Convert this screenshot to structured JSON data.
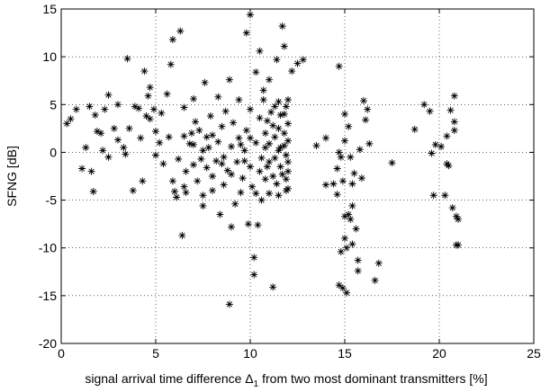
{
  "chart_data": {
    "type": "scatter",
    "y_label": "SFNG [dB]",
    "x_label_parts": [
      "signal arrival time difference Δ",
      "1",
      " from two most dominant transmitters [%]"
    ],
    "xlim": [
      0,
      25
    ],
    "xticks": [
      0,
      5,
      10,
      15,
      20,
      25
    ],
    "ylim": [
      -20,
      15
    ],
    "yticks": [
      -20,
      -15,
      -10,
      -5,
      0,
      5,
      10,
      15
    ],
    "grid": true,
    "marker": "asterisk",
    "color": "#000000",
    "x": [
      0.3,
      0.5,
      0.8,
      1.1,
      1.3,
      1.5,
      1.6,
      1.7,
      1.8,
      1.9,
      2.1,
      2.2,
      2.3,
      2.5,
      2.5,
      2.8,
      3,
      3,
      3.3,
      3.5,
      3.4,
      3.6,
      3.8,
      3.9,
      4.1,
      4.2,
      4.3,
      4.4,
      4.5,
      4.6,
      4.7,
      4.7,
      4.9,
      5,
      5,
      5.2,
      5.3,
      5.4,
      5.6,
      5.7,
      5.8,
      5.9,
      5.9,
      6,
      6.1,
      6.2,
      6.3,
      6.4,
      6.5,
      6.5,
      6.5,
      6.6,
      6.8,
      6.9,
      7,
      7,
      7.1,
      7.2,
      7.3,
      7.4,
      7.5,
      7.5,
      7.6,
      7.7,
      7.7,
      7.8,
      7.9,
      8,
      8,
      8.2,
      8.3,
      8.3,
      8.4,
      8.5,
      8.6,
      8.6,
      8.7,
      8.8,
      8.9,
      8.9,
      9,
      9,
      9.1,
      9.2,
      9.3,
      9.4,
      9.4,
      9.5,
      9.6,
      9.7,
      9.8,
      9.8,
      9.9,
      10,
      10,
      10,
      10.1,
      10.2,
      10.2,
      10.3,
      10.3,
      10.4,
      10.5,
      10.5,
      10.6,
      10.6,
      10.7,
      10.8,
      10.8,
      10.9,
      11,
      11,
      11,
      11.1,
      11.2,
      11.2,
      11.3,
      11.3,
      11.4,
      11.4,
      11.5,
      11.5,
      11.6,
      11.6,
      11.7,
      11.7,
      11.8,
      11.8,
      11.8,
      11.9,
      11.9,
      11.9,
      12,
      12,
      12,
      12.2,
      12.5,
      12.8,
      13.5,
      14,
      14,
      14.4,
      14.6,
      14.6,
      14.7,
      14.7,
      14.7,
      14.8,
      14.8,
      14.9,
      14.9,
      15,
      15,
      15,
      15,
      15.1,
      15.1,
      15.2,
      15.2,
      15.3,
      15.3,
      15.4,
      15.4,
      15.4,
      15.5,
      15.6,
      15.7,
      15.7,
      15.8,
      15.9,
      16,
      16.1,
      16.2,
      16.3,
      16.6,
      16.8,
      17.5,
      18.7,
      19.2,
      19.5,
      19.6,
      19.7,
      19.8,
      20.1,
      20.3,
      20.4,
      20.4,
      20.5,
      20.6,
      20.7,
      20.8,
      20.8,
      20.8,
      20.9,
      20.9,
      21,
      21,
      11,
      11.5,
      10.5,
      12,
      11.8,
      10.8,
      9.5,
      8.5,
      7.5,
      9,
      10,
      11.5,
      12,
      11.2,
      10.9,
      8,
      7,
      6.6,
      9.7,
      11.9,
      12,
      11.6,
      10.3,
      10.7,
      11.3
    ],
    "y": [
      3,
      3.5,
      4.5,
      -1.7,
      0.5,
      4.8,
      -2,
      -4.1,
      3.9,
      2.2,
      2,
      0.2,
      4.5,
      -0.5,
      6,
      2.5,
      1.3,
      5,
      0.5,
      9.8,
      -0.2,
      2.5,
      -4,
      4.8,
      4.6,
      1.5,
      -3,
      8.5,
      3.8,
      5.9,
      3.5,
      6.8,
      4.5,
      2.2,
      -0.3,
      1,
      4.1,
      -1.2,
      6.1,
      1.6,
      9.2,
      -3,
      11.8,
      -4.1,
      -4.7,
      -0.7,
      12.7,
      -8.7,
      -3.6,
      1.7,
      4.7,
      -4.2,
      0.9,
      2,
      -1.3,
      5.6,
      3.2,
      -3,
      2.3,
      -0.7,
      -4.5,
      -5.6,
      7.3,
      1.6,
      -1.6,
      0.5,
      3.8,
      -2.5,
      -4,
      -0.9,
      1.1,
      5.8,
      -6.5,
      2.7,
      -0.5,
      -3.4,
      4.3,
      -1.9,
      -15.9,
      7.6,
      -7.8,
      0.6,
      3.1,
      -5.4,
      -1,
      1.5,
      5.5,
      -4.2,
      -2.7,
      0.2,
      12.5,
      2.3,
      -7.5,
      14.4,
      4.5,
      -1.5,
      -3.6,
      -11,
      -12.8,
      8.4,
      1,
      -7.6,
      10.6,
      3.6,
      -0.6,
      -5,
      5.5,
      2,
      -2.8,
      -1.5,
      0.9,
      7.6,
      -4.3,
      4.2,
      -14.1,
      2.8,
      -0.6,
      1.6,
      9.7,
      -3.3,
      5.3,
      0.2,
      -1.5,
      3.9,
      13.2,
      -2.3,
      2,
      11.1,
      0.7,
      4.8,
      -4,
      -0.3,
      3,
      1.2,
      -2,
      8.5,
      9.3,
      9.7,
      0.7,
      -3.4,
      1.5,
      -3.3,
      -4.4,
      -1.7,
      0,
      9,
      -13.9,
      -0.5,
      -10.4,
      -3,
      -14.2,
      -9,
      -6.7,
      4,
      1.2,
      -14.7,
      -10,
      2.7,
      -6.5,
      -7,
      -0.5,
      -9.6,
      -5.6,
      -3.3,
      -2.2,
      -8,
      -11.3,
      -12.4,
      0.3,
      -2.7,
      5.4,
      3.4,
      4.5,
      0.9,
      -13.4,
      -11.6,
      -1.1,
      2.4,
      5,
      4.3,
      -0.1,
      -4.5,
      0.8,
      0.6,
      -4.5,
      1.7,
      -1.2,
      -1.4,
      4.4,
      -5.8,
      5.9,
      3.2,
      2.3,
      -6.7,
      -9.7,
      -7,
      -9.7,
      -1,
      2.5,
      -2,
      -1,
      4,
      0.5,
      0.8,
      -1.2,
      0.2,
      -2.3,
      1.5,
      -4.5,
      5.5,
      -2.5,
      3.3,
      1.8,
      0.8,
      -2,
      -0.9,
      -2.8,
      -3.8,
      0.5,
      -4.3,
      6.5,
      4.8
    ]
  }
}
